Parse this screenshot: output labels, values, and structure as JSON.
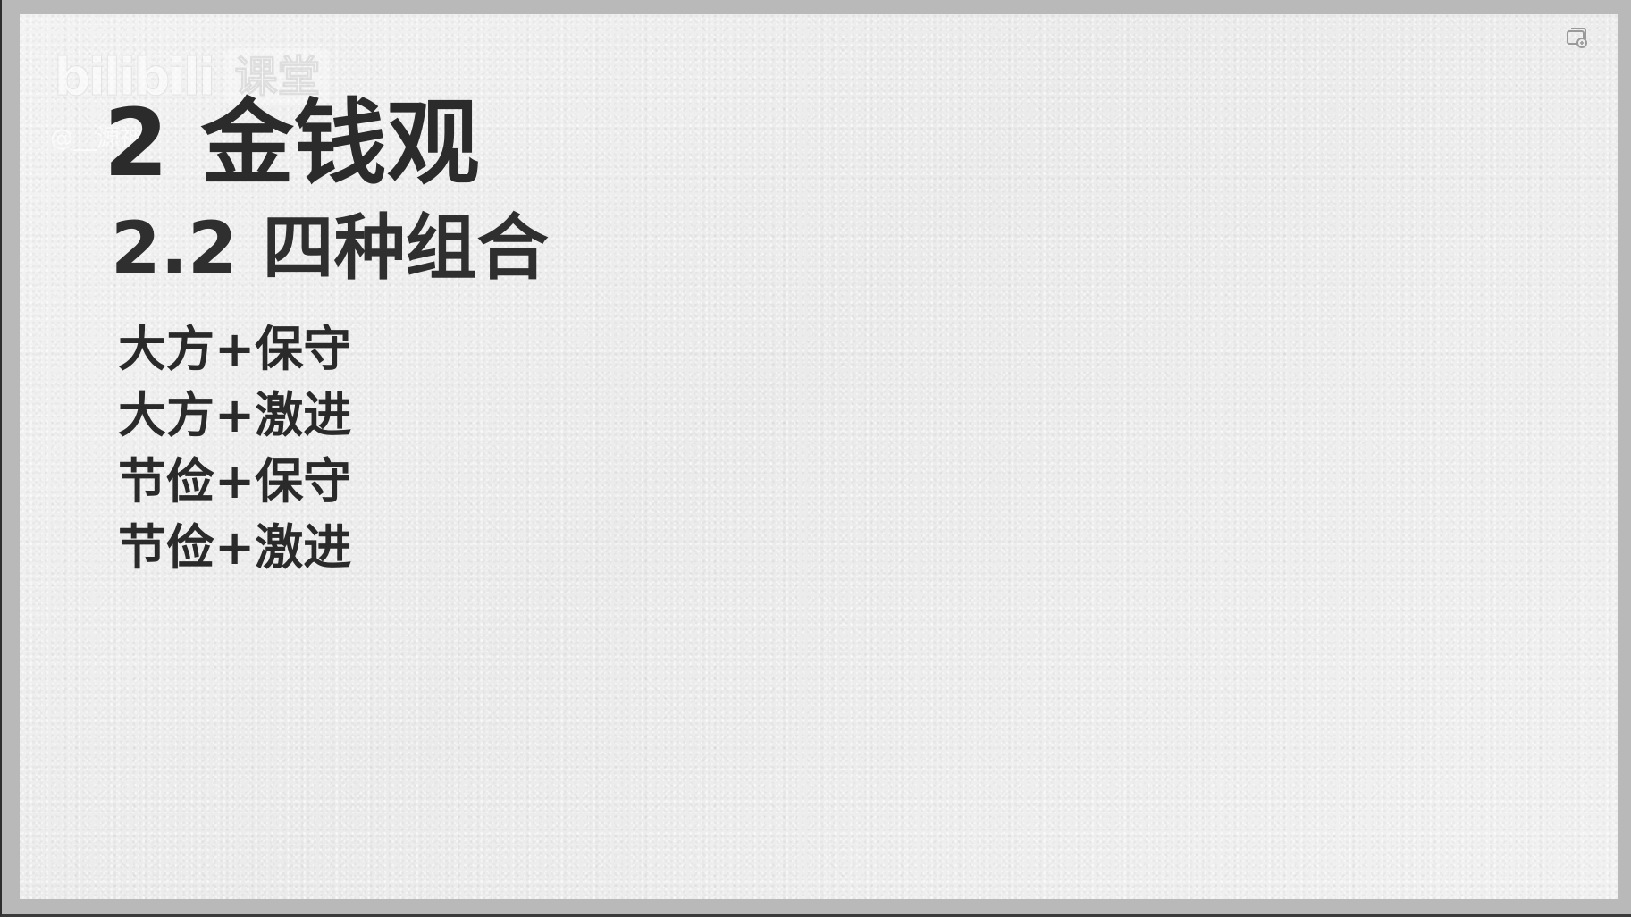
{
  "watermark": {
    "logo": "bilibili",
    "badge": "课堂",
    "user": "@__源神"
  },
  "corner_icon": "cast-screen-icon",
  "slide": {
    "title": "2 金钱观",
    "subtitle": "2.2 四种组合",
    "combinations": [
      "大方+保守",
      "大方+激进",
      "节俭+保守",
      "节俭+激进"
    ]
  }
}
